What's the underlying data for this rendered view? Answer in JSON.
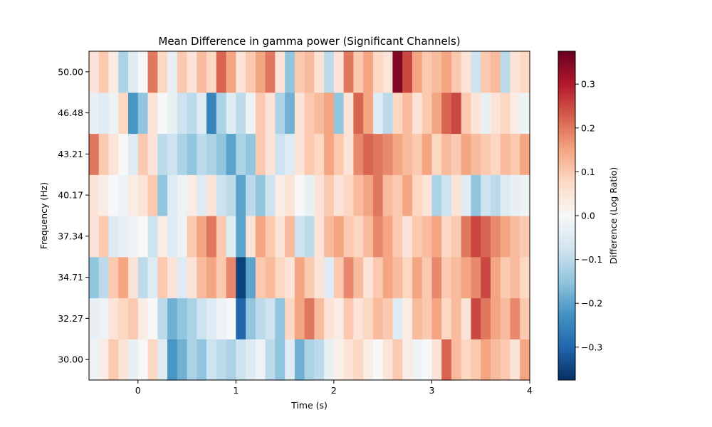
{
  "chart_data": {
    "type": "heatmap",
    "title": "Mean Difference in gamma power (Significant Channels)",
    "xlabel": "Time (s)",
    "ylabel": "Frequency (Hz)",
    "xlim": [
      -0.5,
      4.0
    ],
    "x_ticks": [
      0,
      1,
      2,
      3,
      4
    ],
    "x_tick_labels": [
      "0",
      "1",
      "2",
      "3",
      "4"
    ],
    "y_tick_labels": [
      "30.00",
      "32.27",
      "34.71",
      "37.34",
      "40.17",
      "43.21",
      "46.48",
      "50.00"
    ],
    "frequencies": [
      30.0,
      32.27,
      34.71,
      37.34,
      40.17,
      43.21,
      46.48,
      50.0
    ],
    "colorbar": {
      "label": "Difference (Log Ratio)",
      "colormap": "RdBu_r",
      "vmin": -0.375,
      "vmax": 0.375,
      "ticks": [
        -0.3,
        -0.2,
        -0.1,
        0.0,
        0.1,
        0.2,
        0.3
      ],
      "tick_labels": [
        "−0.3",
        "−0.2",
        "−0.1",
        "0.0",
        "0.1",
        "0.2",
        "0.3"
      ]
    },
    "time_step": 0.1,
    "time_start": -0.5,
    "rows": [
      {
        "freq": 30.0,
        "values": [
          -0.02,
          0.03,
          0.1,
          0.05,
          -0.03,
          0.0,
          0.08,
          -0.05,
          -0.22,
          -0.18,
          -0.12,
          -0.15,
          -0.08,
          -0.1,
          -0.12,
          -0.08,
          -0.05,
          -0.02,
          -0.1,
          -0.15,
          -0.05,
          -0.18,
          -0.12,
          -0.1,
          -0.03,
          0.02,
          0.05,
          0.08,
          0.03,
          0.0,
          0.05,
          0.1,
          0.03,
          -0.02,
          0.0,
          0.05,
          0.22,
          0.12,
          0.08,
          0.1,
          0.15,
          0.12,
          0.1,
          0.05,
          0.15
        ]
      },
      {
        "freq": 32.27,
        "values": [
          -0.03,
          -0.02,
          0.05,
          0.08,
          0.1,
          0.03,
          0.0,
          -0.1,
          -0.18,
          -0.15,
          -0.12,
          -0.08,
          -0.05,
          -0.02,
          0.0,
          -0.3,
          -0.15,
          -0.1,
          -0.08,
          -0.15,
          0.08,
          0.15,
          0.2,
          0.12,
          0.05,
          0.03,
          0.1,
          0.05,
          0.08,
          0.12,
          0.1,
          -0.05,
          0.03,
          0.12,
          0.1,
          0.15,
          0.08,
          0.12,
          0.05,
          0.25,
          0.2,
          0.15,
          0.12,
          0.18,
          0.1
        ]
      },
      {
        "freq": 34.71,
        "values": [
          -0.15,
          -0.1,
          0.1,
          0.15,
          0.05,
          -0.1,
          -0.05,
          0.1,
          0.05,
          -0.05,
          0.05,
          0.12,
          0.15,
          0.1,
          0.18,
          -0.35,
          -0.2,
          0.1,
          0.12,
          0.08,
          0.05,
          0.15,
          0.1,
          0.05,
          -0.05,
          0.1,
          0.18,
          0.12,
          0.05,
          0.1,
          0.15,
          0.12,
          0.08,
          0.15,
          0.1,
          0.18,
          0.1,
          0.12,
          0.15,
          0.18,
          0.25,
          0.15,
          0.1,
          0.12,
          0.08
        ]
      },
      {
        "freq": 37.34,
        "values": [
          0.05,
          0.1,
          -0.05,
          -0.03,
          -0.02,
          0.0,
          -0.08,
          0.03,
          -0.05,
          -0.02,
          0.1,
          0.15,
          0.2,
          0.1,
          -0.05,
          -0.2,
          0.05,
          0.15,
          0.1,
          0.05,
          0.12,
          -0.08,
          -0.1,
          0.05,
          0.12,
          0.15,
          0.1,
          0.08,
          0.12,
          0.18,
          0.15,
          0.1,
          0.05,
          0.1,
          0.12,
          0.15,
          0.08,
          0.1,
          0.2,
          0.25,
          0.22,
          0.18,
          0.15,
          0.12,
          0.1
        ]
      },
      {
        "freq": 40.17,
        "values": [
          0.05,
          0.03,
          0.0,
          -0.02,
          0.03,
          0.05,
          0.1,
          -0.15,
          -0.05,
          -0.02,
          0.03,
          -0.05,
          0.05,
          -0.08,
          -0.1,
          -0.2,
          -0.1,
          -0.15,
          -0.08,
          0.03,
          0.05,
          0.0,
          -0.03,
          0.05,
          0.1,
          0.05,
          0.08,
          0.12,
          0.15,
          0.2,
          0.12,
          0.1,
          0.15,
          0.08,
          0.05,
          -0.12,
          -0.08,
          0.05,
          -0.05,
          -0.15,
          -0.08,
          -0.1,
          -0.05,
          -0.03,
          -0.02
        ]
      },
      {
        "freq": 43.21,
        "values": [
          0.2,
          0.1,
          0.05,
          0.0,
          -0.05,
          0.1,
          0.05,
          -0.1,
          -0.08,
          -0.12,
          -0.15,
          -0.1,
          -0.12,
          -0.15,
          -0.2,
          -0.12,
          -0.15,
          0.1,
          0.05,
          -0.08,
          -0.05,
          0.05,
          0.1,
          0.08,
          0.15,
          0.1,
          0.05,
          0.18,
          0.22,
          0.2,
          0.18,
          0.15,
          0.12,
          0.1,
          0.15,
          0.08,
          0.12,
          0.1,
          0.15,
          0.12,
          0.1,
          0.08,
          0.12,
          0.1,
          0.15
        ]
      },
      {
        "freq": 46.48,
        "values": [
          -0.03,
          -0.05,
          -0.02,
          0.08,
          -0.22,
          -0.15,
          0.05,
          0.0,
          -0.03,
          -0.08,
          -0.1,
          -0.05,
          -0.25,
          -0.12,
          -0.05,
          -0.1,
          -0.02,
          0.1,
          0.05,
          -0.12,
          -0.18,
          0.05,
          0.1,
          0.12,
          0.15,
          -0.15,
          0.05,
          0.22,
          0.15,
          -0.05,
          -0.1,
          0.08,
          0.12,
          0.05,
          0.1,
          0.15,
          0.22,
          0.25,
          0.1,
          0.05,
          -0.03,
          0.05,
          0.08,
          0.03,
          -0.02
        ]
      },
      {
        "freq": 50.0,
        "values": [
          0.05,
          0.1,
          0.03,
          -0.12,
          -0.05,
          0.0,
          0.2,
          0.08,
          -0.03,
          0.1,
          0.05,
          0.12,
          0.08,
          0.22,
          0.15,
          0.05,
          0.1,
          0.15,
          0.2,
          0.05,
          -0.15,
          0.1,
          0.12,
          0.05,
          -0.1,
          0.05,
          0.2,
          0.1,
          0.15,
          0.08,
          0.05,
          0.35,
          0.25,
          0.15,
          0.1,
          0.12,
          0.15,
          0.1,
          0.05,
          -0.08,
          0.1,
          0.12,
          -0.1,
          0.05,
          0.08
        ]
      }
    ]
  }
}
